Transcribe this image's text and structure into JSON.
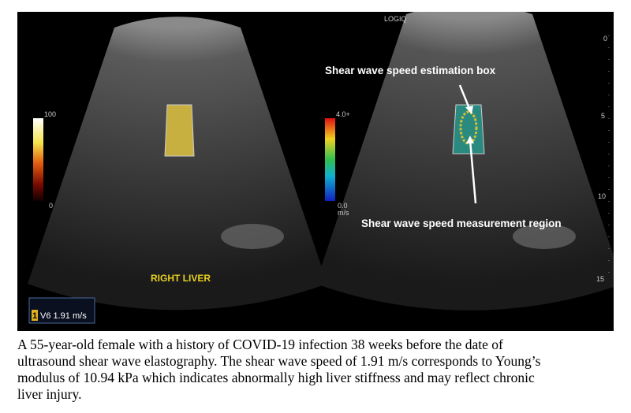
{
  "header": {
    "brand": "LOGIQ"
  },
  "left_panel": {
    "scale_max": "100",
    "scale_min": "0",
    "label": "RIGHT LIVER"
  },
  "right_panel": {
    "scale_max": "4.0+",
    "scale_min": "0.0",
    "scale_unit": "m/s",
    "annotations": [
      "Shear wave speed estimation box",
      "Shear wave speed measurement region"
    ]
  },
  "depth_scale": [
    "0",
    "5",
    "10",
    "15"
  ],
  "measurement": {
    "index": "1",
    "text": "V6 1.91 m/s"
  },
  "caption": [
    "A 55-year-old female with a history of COVID-19 infection 38 weeks before the date of",
    "ultrasound shear wave elastography. The shear wave speed of 1.91 m/s corresponds to Young’s",
    "modulus of 10.94 kPa which indicates abnormally high liver stiffness and may reflect chronic",
    "liver injury."
  ]
}
